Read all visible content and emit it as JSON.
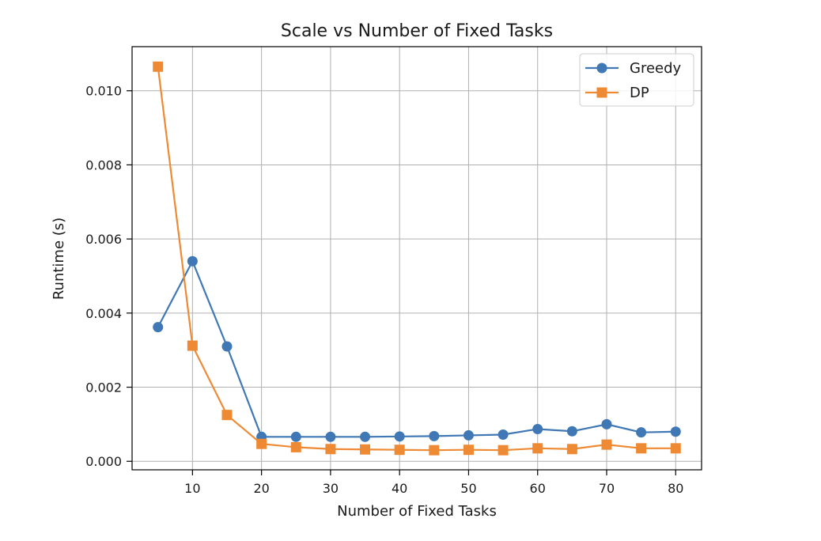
{
  "chart_data": {
    "type": "line",
    "title": "Scale vs Number of Fixed Tasks",
    "xlabel": "Number of Fixed Tasks",
    "ylabel": "Runtime (s)",
    "x": [
      5,
      10,
      15,
      20,
      25,
      30,
      35,
      40,
      45,
      50,
      55,
      60,
      65,
      70,
      75,
      80
    ],
    "xlim": [
      1.25,
      83.75
    ],
    "ylim": [
      -0.00023,
      0.01119
    ],
    "xticks": [
      10,
      20,
      30,
      40,
      50,
      60,
      70,
      80
    ],
    "xtick_labels": [
      "10",
      "20",
      "30",
      "40",
      "50",
      "60",
      "70",
      "80"
    ],
    "yticks": [
      0.0,
      0.002,
      0.004,
      0.006,
      0.008,
      0.01
    ],
    "ytick_labels": [
      "0.000",
      "0.002",
      "0.004",
      "0.006",
      "0.008",
      "0.010"
    ],
    "grid": true,
    "legend_position": "top-right",
    "series": [
      {
        "name": "Greedy",
        "color": "#3f78b5",
        "marker": "circle",
        "values": [
          0.00362,
          0.0054,
          0.0031,
          0.00066,
          0.00066,
          0.00066,
          0.00066,
          0.00067,
          0.00068,
          0.0007,
          0.00072,
          0.00087,
          0.00081,
          0.001,
          0.00078,
          0.0008
        ]
      },
      {
        "name": "DP",
        "color": "#ee8a33",
        "marker": "square",
        "values": [
          0.01065,
          0.00312,
          0.00125,
          0.00047,
          0.00038,
          0.00033,
          0.00032,
          0.00031,
          0.0003,
          0.00031,
          0.0003,
          0.00035,
          0.00033,
          0.00045,
          0.00035,
          0.00035
        ]
      }
    ]
  }
}
